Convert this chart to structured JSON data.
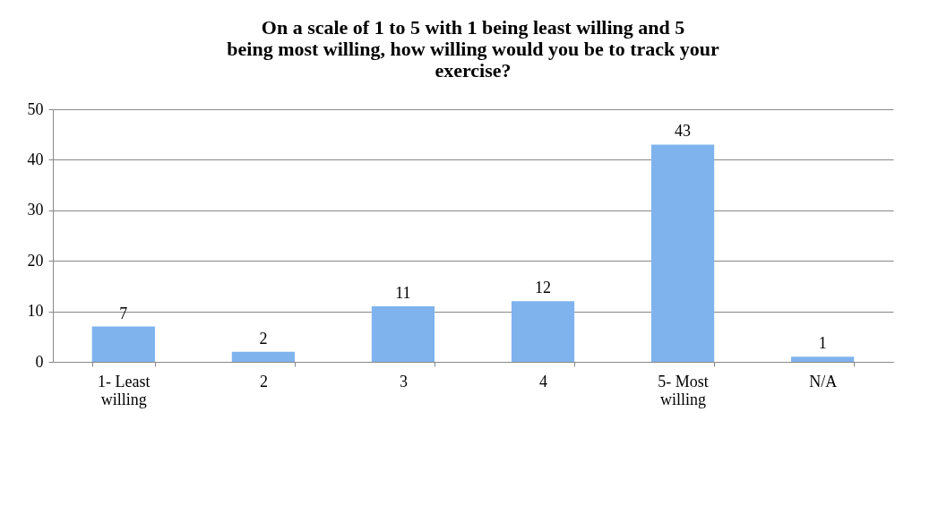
{
  "chart_data": {
    "type": "bar",
    "title": "On a scale of 1 to 5 with 1 being least willing and 5 being most willing, how willing would you be to track your exercise?",
    "categories": [
      "1- Least willing",
      "2",
      "3",
      "4",
      "5- Most willing",
      "N/A"
    ],
    "values": [
      7,
      2,
      11,
      12,
      43,
      1
    ],
    "color": "#7fb3ee",
    "ylim": [
      0,
      50
    ],
    "yticks": [
      0,
      10,
      20,
      30,
      40,
      50
    ],
    "grid": "y",
    "data_labels": true
  }
}
